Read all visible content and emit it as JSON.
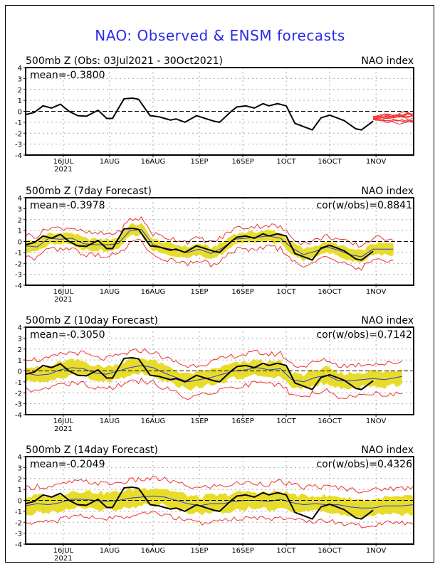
{
  "title": "NAO: Observed & ENSM forecasts",
  "colors": {
    "title": "#2a2ae8",
    "obs": "#000000",
    "mean": "#2a3ad8",
    "spread": "#e8dc2a",
    "range": "#ee3333",
    "members": "#ee3333"
  },
  "chart_data": [
    {
      "type": "line",
      "panel": "observed",
      "title_left": "500mb Z (Obs: 03Jul2021 - 30Oct2021)",
      "title_right": "NAO index",
      "annotation_left": "mean=-0.3800",
      "annotation_right": "",
      "ylim": [
        -4,
        4
      ],
      "yticks": [
        4,
        3,
        2,
        1,
        0,
        -1,
        -2,
        -3,
        -4
      ],
      "xlim_days_since_03Jul2021": [
        0,
        134
      ],
      "xticks": [
        {
          "day": 13,
          "label": "16JUL",
          "sub": "2021"
        },
        {
          "day": 29,
          "label": "1AUG"
        },
        {
          "day": 44,
          "label": "16AUG"
        },
        {
          "day": 60,
          "label": "1SEP"
        },
        {
          "day": 75,
          "label": "16SEP"
        },
        {
          "day": 90,
          "label": "1OCT"
        },
        {
          "day": 105,
          "label": "16OCT"
        },
        {
          "day": 121,
          "label": "1NOV"
        }
      ],
      "grid": true,
      "series": [
        {
          "name": "Observed NAO",
          "x": [
            0,
            3,
            6,
            9,
            12,
            15,
            18,
            21,
            25,
            28,
            30,
            34,
            37,
            39,
            43,
            46,
            50,
            52,
            55,
            59,
            65,
            67,
            71,
            73,
            76,
            79,
            82,
            84,
            87,
            90,
            93,
            97,
            99,
            102,
            105,
            110,
            114,
            116,
            120,
            122,
            124
          ],
          "values": [
            -0.3,
            -0.1,
            0.5,
            0.3,
            0.65,
            0.0,
            -0.4,
            -0.45,
            0.1,
            -0.65,
            -0.65,
            1.15,
            1.2,
            1.1,
            -0.4,
            -0.5,
            -0.8,
            -0.7,
            -1.0,
            -0.4,
            -0.9,
            -1.0,
            0.0,
            0.4,
            0.5,
            0.3,
            0.7,
            0.5,
            0.7,
            0.5,
            -1.1,
            -1.5,
            -1.7,
            -0.6,
            -0.35,
            -0.85,
            -1.6,
            -1.7,
            -0.9,
            -0.75,
            -0.6
          ]
        },
        {
          "name": "Ensemble member forecasts",
          "start_day": 120,
          "end_day": 134,
          "range": [
            -1.2,
            1.0
          ]
        }
      ]
    },
    {
      "type": "line",
      "panel": "7day",
      "title_left": "500mb Z (7day Forecast)",
      "title_right": "NAO index",
      "annotation_left": "mean=-0.3978",
      "annotation_right": "cor(w/obs)=0.8841",
      "ylim": [
        -4,
        4
      ],
      "forecast_end_day": 127,
      "series": [
        {
          "name": "Ensemble mean",
          "x": [
            0,
            4,
            8,
            12,
            16,
            20,
            24,
            28,
            32,
            36,
            40,
            44,
            48,
            52,
            56,
            60,
            64,
            68,
            72,
            76,
            80,
            84,
            88,
            92,
            96,
            100,
            104,
            108,
            112,
            116,
            120,
            124,
            127
          ],
          "values": [
            -0.4,
            -0.5,
            0.3,
            0.2,
            0.3,
            -0.2,
            -0.3,
            -0.3,
            -0.2,
            1.0,
            1.1,
            -0.3,
            -0.6,
            -0.8,
            -1.0,
            -0.7,
            -1.1,
            -0.6,
            0.2,
            0.3,
            0.4,
            0.5,
            0.3,
            -0.6,
            -1.2,
            -0.9,
            -0.5,
            -0.8,
            -1.2,
            -1.4,
            -0.7,
            -0.7,
            -0.7
          ]
        },
        {
          "name": "Spread half-width",
          "value": 0.6
        },
        {
          "name": "Range half-width",
          "value": 1.0
        }
      ]
    },
    {
      "type": "line",
      "panel": "10day",
      "title_left": "500mb Z (10day Forecast)",
      "title_right": "NAO index",
      "annotation_left": "mean=-0.3050",
      "annotation_right": "cor(w/obs)=0.7142",
      "ylim": [
        -4,
        4
      ],
      "forecast_end_day": 130,
      "series": [
        {
          "name": "Ensemble mean",
          "x": [
            0,
            4,
            8,
            12,
            16,
            20,
            24,
            28,
            32,
            36,
            40,
            44,
            48,
            52,
            56,
            60,
            64,
            68,
            72,
            76,
            80,
            84,
            88,
            92,
            96,
            100,
            104,
            108,
            112,
            116,
            120,
            124,
            130
          ],
          "values": [
            -0.2,
            -0.4,
            -0.3,
            0.1,
            0.3,
            0.2,
            -0.2,
            -0.3,
            0.0,
            0.3,
            0.5,
            0.3,
            -0.2,
            -0.6,
            -1.0,
            -0.8,
            -0.6,
            -0.3,
            0.0,
            0.1,
            0.3,
            0.1,
            0.2,
            -0.8,
            -1.0,
            -0.6,
            -0.4,
            -0.9,
            -0.9,
            -0.8,
            -0.7,
            -0.8,
            -0.5
          ]
        },
        {
          "name": "Spread half-width",
          "value": 0.8
        },
        {
          "name": "Range half-width",
          "value": 1.4
        }
      ]
    },
    {
      "type": "line",
      "panel": "14day",
      "title_left": "500mb Z (14day Forecast)",
      "title_right": "NAO index",
      "annotation_left": "mean=-0.2049",
      "annotation_right": "cor(w/obs)=0.4326",
      "ylim": [
        -4,
        4
      ],
      "forecast_end_day": 134,
      "series": [
        {
          "name": "Ensemble mean",
          "x": [
            0,
            4,
            8,
            12,
            16,
            20,
            24,
            28,
            32,
            36,
            40,
            44,
            48,
            52,
            56,
            60,
            64,
            68,
            72,
            76,
            80,
            84,
            88,
            92,
            96,
            100,
            104,
            108,
            112,
            116,
            120,
            124,
            130,
            134
          ],
          "values": [
            -0.5,
            -0.3,
            -0.4,
            -0.2,
            0.1,
            0.1,
            0.0,
            -0.1,
            0.0,
            0.2,
            0.3,
            0.4,
            0.3,
            0.0,
            -0.3,
            -0.5,
            -0.3,
            -0.3,
            -0.1,
            0.0,
            0.0,
            -0.1,
            0.1,
            -0.2,
            -0.4,
            -0.3,
            -0.4,
            -0.4,
            -0.6,
            -0.7,
            -0.7,
            -0.5,
            -0.5,
            -0.4
          ]
        },
        {
          "name": "Spread half-width",
          "value": 0.9
        },
        {
          "name": "Range half-width",
          "value": 1.6
        }
      ]
    }
  ]
}
